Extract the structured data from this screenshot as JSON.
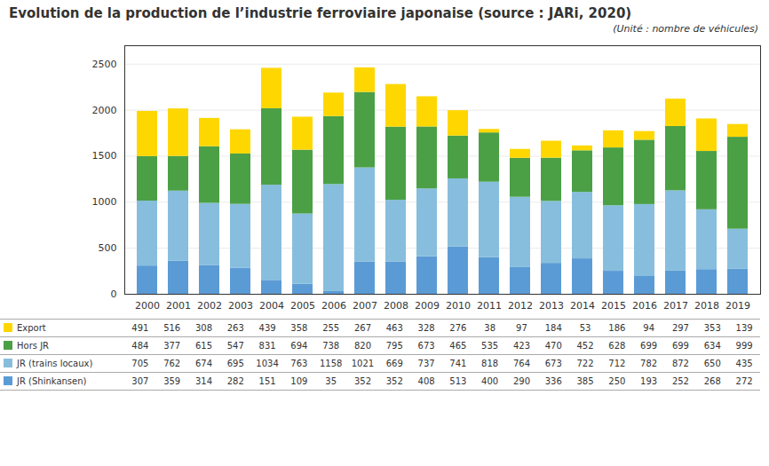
{
  "chart_data": {
    "type": "bar",
    "stacked": true,
    "title": "Evolution de la production de l’industrie ferroviaire japonaise (source : JARi, 2020)",
    "subtitle": "(Unité : nombre de véhicules)",
    "categories": [
      "2000",
      "2001",
      "2002",
      "2003",
      "2004",
      "2005",
      "2006",
      "2007",
      "2008",
      "2009",
      "2010",
      "2011",
      "2012",
      "2013",
      "2014",
      "2015",
      "2016",
      "2017",
      "2018",
      "2019"
    ],
    "series": [
      {
        "name": "JR (Shinkansen)",
        "color": "#5B9BD5",
        "values": [
          307,
          359,
          314,
          282,
          151,
          109,
          35,
          352,
          352,
          408,
          513,
          400,
          290,
          336,
          385,
          250,
          193,
          252,
          268,
          272
        ]
      },
      {
        "name": "JR (trains locaux)",
        "color": "#87BEDD",
        "values": [
          705,
          762,
          674,
          695,
          1034,
          763,
          1158,
          1021,
          669,
          737,
          741,
          818,
          764,
          673,
          722,
          712,
          782,
          872,
          650,
          435
        ]
      },
      {
        "name": "Hors JR",
        "color": "#4BA046",
        "values": [
          484,
          377,
          615,
          547,
          831,
          694,
          738,
          820,
          795,
          673,
          465,
          535,
          423,
          470,
          452,
          628,
          699,
          699,
          634,
          999
        ]
      },
      {
        "name": "Export",
        "color": "#FFD700",
        "values": [
          491,
          516,
          308,
          263,
          439,
          358,
          255,
          267,
          463,
          328,
          276,
          38,
          97,
          184,
          53,
          186,
          94,
          297,
          353,
          139
        ]
      }
    ],
    "ylim": [
      0,
      2700
    ],
    "yticks": [
      0,
      500,
      1000,
      1500,
      2000,
      2500
    ],
    "grid": true,
    "legend": "bottom"
  }
}
